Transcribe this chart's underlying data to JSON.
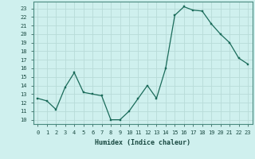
{
  "x": [
    0,
    1,
    2,
    3,
    4,
    5,
    6,
    7,
    8,
    9,
    10,
    11,
    12,
    13,
    14,
    15,
    16,
    17,
    18,
    19,
    20,
    21,
    22,
    23
  ],
  "y": [
    12.5,
    12.2,
    11.2,
    13.8,
    15.5,
    13.2,
    13.0,
    12.8,
    10.0,
    10.0,
    11.0,
    12.5,
    14.0,
    12.5,
    16.0,
    22.2,
    23.2,
    22.8,
    22.7,
    21.2,
    20.0,
    19.0,
    17.2,
    16.5
  ],
  "line_color": "#1a6b5a",
  "marker_color": "#1a6b5a",
  "bg_color": "#cff0ee",
  "grid_color": "#b8dbd8",
  "xlabel": "Humidex (Indice chaleur)",
  "ylabel_ticks": [
    10,
    11,
    12,
    13,
    14,
    15,
    16,
    17,
    18,
    19,
    20,
    21,
    22,
    23
  ],
  "xtick_labels": [
    "0",
    "1",
    "2",
    "3",
    "4",
    "5",
    "6",
    "7",
    "8",
    "9",
    "10",
    "11",
    "12",
    "13",
    "14",
    "15",
    "16",
    "17",
    "18",
    "19",
    "20",
    "21",
    "22",
    "23"
  ],
  "ylim": [
    9.5,
    23.8
  ],
  "xlim": [
    -0.5,
    23.5
  ],
  "title": ""
}
